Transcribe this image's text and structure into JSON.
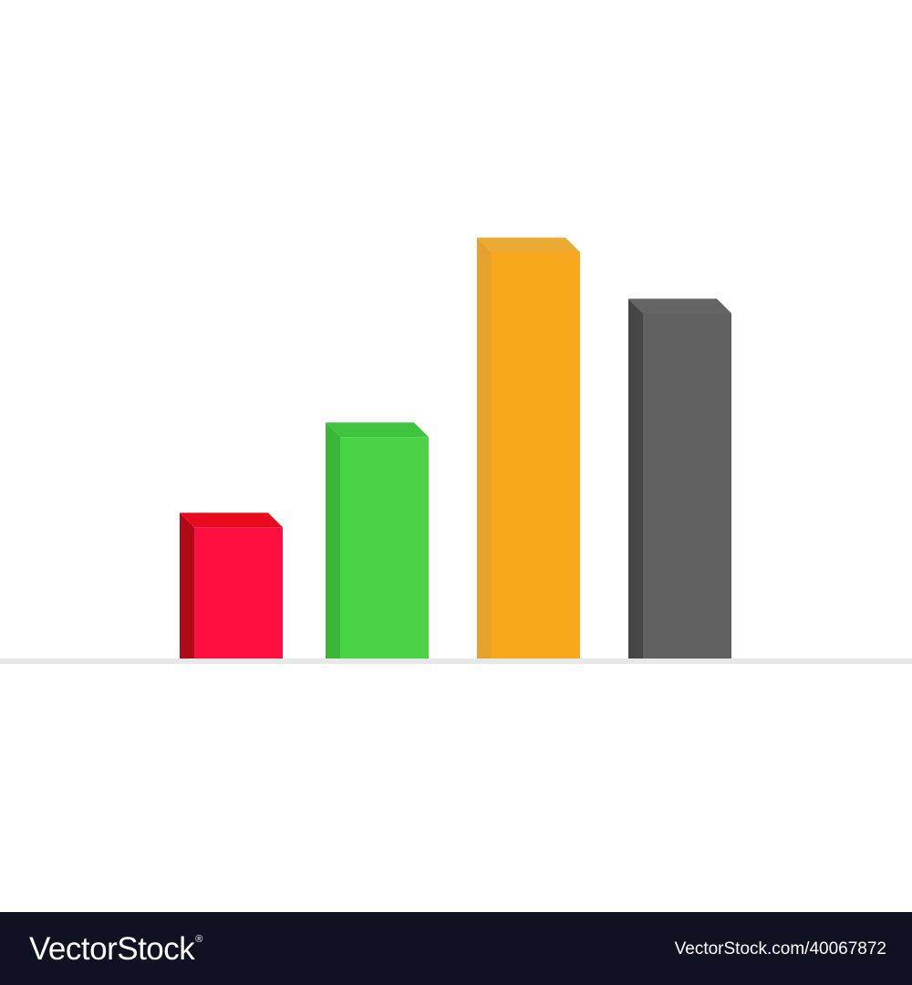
{
  "chart_data": {
    "type": "bar",
    "style": "3d",
    "categories": [
      "",
      "",
      "",
      ""
    ],
    "values": [
      1.0,
      1.62,
      2.89,
      2.47
    ],
    "colors": {
      "front": [
        "#ff0f3f",
        "#48d446",
        "#f7a81b",
        "#606060"
      ],
      "side": [
        "#b00a18",
        "#3ab639",
        "#e6a02c",
        "#454545"
      ],
      "top": [
        "#ea0a20",
        "#40c33f",
        "#ebaa34",
        "#646464"
      ]
    },
    "baseline_color": "#e8e8e8",
    "ylim": [
      0,
      4.07
    ],
    "grid": false,
    "legend": "none",
    "title": "",
    "xlabel": "",
    "ylabel": ""
  },
  "footer": {
    "brand": "VectorStock",
    "trademark": "®",
    "image_id": "VectorStock.com/40067872",
    "background": "#0f1222"
  }
}
